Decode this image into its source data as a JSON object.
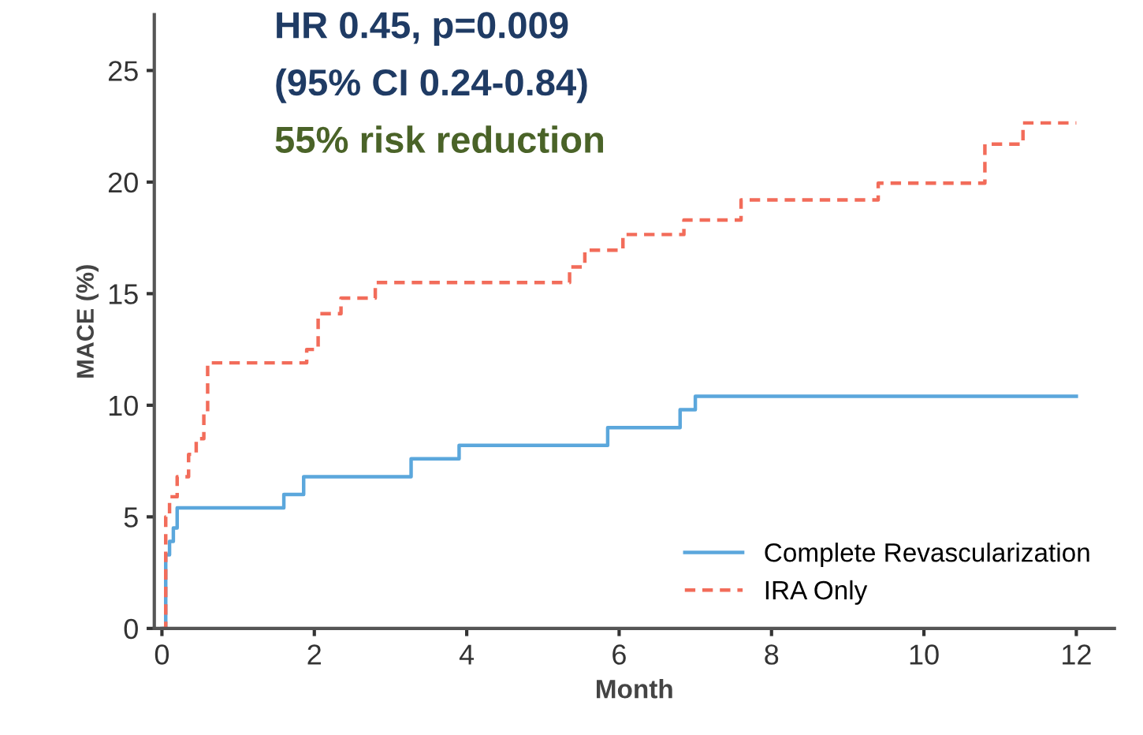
{
  "chart_data": {
    "type": "step",
    "xlabel": "Month",
    "ylabel": "MACE (%)",
    "xlim": [
      -0.1,
      12.5
    ],
    "ylim": [
      0,
      27.5
    ],
    "xticks": [
      0,
      2,
      4,
      6,
      8,
      10,
      12
    ],
    "yticks": [
      0,
      5,
      10,
      15,
      20,
      25
    ],
    "grid": false,
    "legend": "bottom right",
    "series": [
      {
        "name": "Complete Revascularization",
        "color": "#5ba7dc",
        "line_style": "solid",
        "x": [
          0,
          0.05,
          0.1,
          0.15,
          0.2,
          1.6,
          1.86,
          3.27,
          3.9,
          5.85,
          6.8,
          7.0,
          12
        ],
        "values": [
          0,
          3.3,
          3.9,
          4.5,
          5.4,
          6.0,
          6.8,
          7.6,
          8.2,
          9.0,
          9.8,
          10.4,
          10.4
        ]
      },
      {
        "name": "IRA Only",
        "color": "#f26c5a",
        "line_style": "dashed",
        "x": [
          0,
          0.05,
          0.1,
          0.2,
          0.35,
          0.45,
          0.55,
          0.6,
          1.9,
          2.05,
          2.35,
          2.8,
          5.35,
          5.55,
          6.05,
          6.85,
          7.6,
          9.4,
          10.8,
          11.3,
          12
        ],
        "values": [
          0,
          5.0,
          5.9,
          6.8,
          7.8,
          8.5,
          9.7,
          11.9,
          12.5,
          14.1,
          14.8,
          15.5,
          16.2,
          16.95,
          17.65,
          18.3,
          19.2,
          19.95,
          21.7,
          22.65,
          22.65
        ]
      }
    ],
    "annotations": [
      "HR 0.45, p=0.009",
      "(95% CI 0.24-0.84)",
      "55% risk reduction"
    ]
  }
}
